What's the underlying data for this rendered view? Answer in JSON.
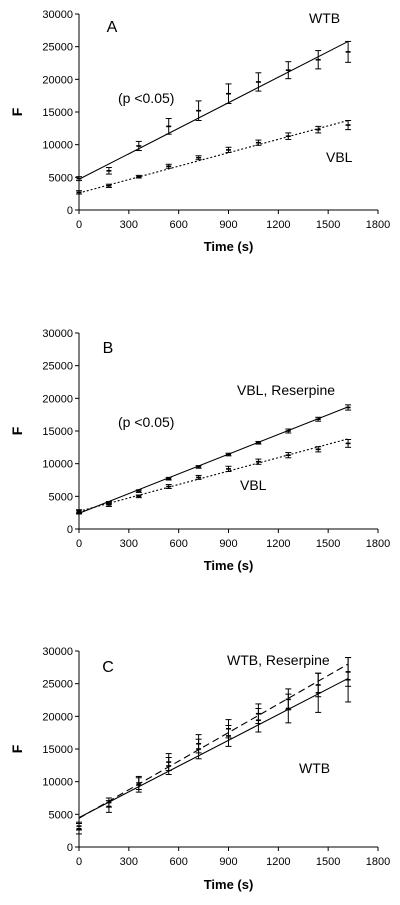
{
  "chart_data": [
    {
      "type": "scatter",
      "panel": "A",
      "xlabel": "Time (s)",
      "ylabel": "F",
      "xlim": [
        0,
        1800
      ],
      "ylim": [
        0,
        30000
      ],
      "x_ticks": [
        0,
        300,
        600,
        900,
        1200,
        1500,
        1800
      ],
      "y_ticks": [
        0,
        5000,
        10000,
        15000,
        20000,
        25000,
        30000
      ],
      "annotations": [
        "(p <0.05)"
      ],
      "series": [
        {
          "name": "WTB",
          "style": "solid",
          "x": [
            0,
            180,
            360,
            540,
            720,
            900,
            1080,
            1260,
            1440,
            1620
          ],
          "y": [
            4800,
            6000,
            9800,
            12800,
            15200,
            17800,
            19600,
            21400,
            23000,
            24200
          ],
          "err": [
            300,
            500,
            700,
            1200,
            1500,
            1500,
            1400,
            1300,
            1400,
            1600
          ],
          "fit": [
            4700,
            25800
          ]
        },
        {
          "name": "VBL",
          "style": "dotted",
          "x": [
            0,
            180,
            360,
            540,
            720,
            900,
            1080,
            1260,
            1440,
            1620
          ],
          "y": [
            2700,
            3700,
            5100,
            6700,
            8000,
            9200,
            10300,
            11300,
            12300,
            13000
          ],
          "err": [
            250,
            250,
            200,
            300,
            300,
            400,
            400,
            500,
            500,
            700
          ],
          "fit": [
            2600,
            13700
          ]
        }
      ]
    },
    {
      "type": "scatter",
      "panel": "B",
      "xlabel": "Time (s)",
      "ylabel": "F",
      "xlim": [
        0,
        1800
      ],
      "ylim": [
        0,
        30000
      ],
      "x_ticks": [
        0,
        300,
        600,
        900,
        1200,
        1500,
        1800
      ],
      "y_ticks": [
        0,
        5000,
        10000,
        15000,
        20000,
        25000,
        30000
      ],
      "annotations": [
        "(p <0.05)"
      ],
      "series": [
        {
          "name": "VBL, Reserpine",
          "style": "solid",
          "x": [
            0,
            180,
            360,
            540,
            720,
            900,
            1080,
            1260,
            1440,
            1620
          ],
          "y": [
            2600,
            4000,
            5800,
            7700,
            9500,
            11400,
            13200,
            15000,
            16800,
            18600
          ],
          "err": [
            300,
            200,
            200,
            200,
            200,
            200,
            200,
            300,
            300,
            400
          ],
          "fit": [
            2400,
            18700
          ]
        },
        {
          "name": "VBL",
          "style": "dotted",
          "x": [
            0,
            180,
            360,
            540,
            720,
            900,
            1080,
            1260,
            1440,
            1620
          ],
          "y": [
            2700,
            3700,
            5000,
            6500,
            7900,
            9200,
            10300,
            11300,
            12200,
            13100
          ],
          "err": [
            250,
            250,
            200,
            300,
            300,
            400,
            400,
            400,
            400,
            600
          ],
          "fit": [
            2700,
            13800
          ]
        }
      ]
    },
    {
      "type": "scatter",
      "panel": "C",
      "xlabel": "Time (s)",
      "ylabel": "F",
      "xlim": [
        0,
        1800
      ],
      "ylim": [
        0,
        30000
      ],
      "x_ticks": [
        0,
        300,
        600,
        900,
        1200,
        1500,
        1800
      ],
      "y_ticks": [
        0,
        5000,
        10000,
        15000,
        20000,
        25000,
        30000
      ],
      "annotations": [],
      "series": [
        {
          "name": "WTB, Reserpine",
          "style": "dashed",
          "x": [
            0,
            180,
            360,
            540,
            720,
            900,
            1080,
            1260,
            1440,
            1620
          ],
          "y": [
            3200,
            6800,
            9800,
            13000,
            15800,
            18100,
            20400,
            22600,
            24800,
            26800
          ],
          "err": [
            600,
            700,
            1000,
            1300,
            1400,
            1400,
            1500,
            1600,
            1800,
            2200
          ],
          "fit": [
            4400,
            28000
          ]
        },
        {
          "name": "WTB",
          "style": "solid",
          "x": [
            0,
            180,
            360,
            540,
            720,
            900,
            1080,
            1260,
            1440,
            1620
          ],
          "y": [
            2800,
            6200,
            9500,
            12400,
            15000,
            17000,
            19400,
            21200,
            23600,
            25600
          ],
          "err": [
            800,
            900,
            1100,
            1300,
            1500,
            1600,
            1800,
            2200,
            3000,
            3400
          ],
          "fit": [
            4500,
            25800
          ]
        }
      ]
    }
  ]
}
